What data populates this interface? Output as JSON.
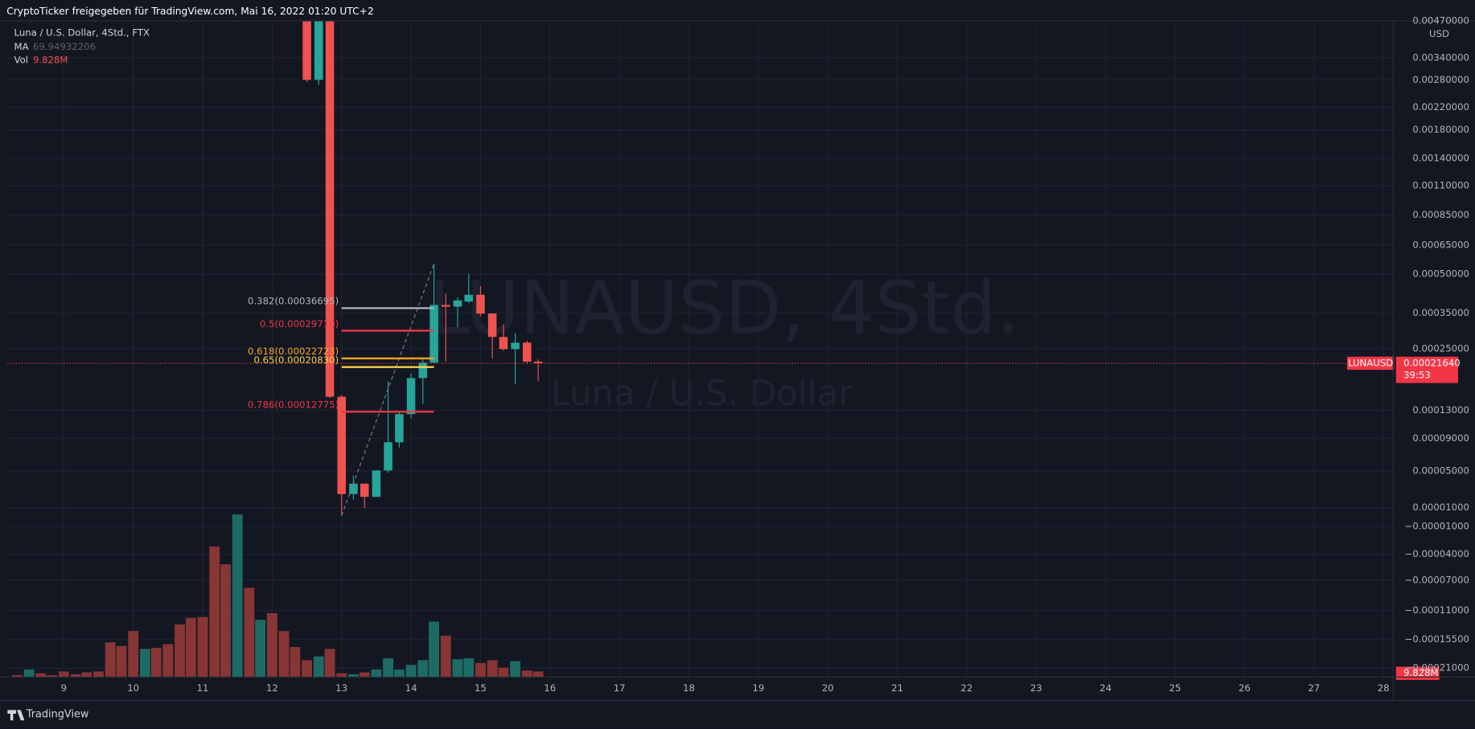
{
  "chart_data": {
    "type": "candlestick",
    "header": "CryptoTicker freigegeben für TradingView.com, Mai 16, 2022 01:20 UTC+2",
    "title": "Luna / U.S. Dollar, 4Std., FTX",
    "watermark": "LUNAUSD, 4Std.",
    "watermark_subtitle": "Luna / U.S. Dollar",
    "y_unit": "USD",
    "footer": "TradingView",
    "up_color": "#26a69a",
    "down_color": "#ef5350",
    "x": [
      12.5,
      12.67,
      12.83,
      13.0,
      13.17,
      13.33,
      13.5,
      13.67,
      13.83,
      14.0,
      14.17,
      14.33,
      14.5,
      14.67,
      14.83,
      15.0,
      15.17,
      15.33,
      15.5,
      15.67,
      15.83
    ],
    "open": [
      0.006,
      0.0028,
      0.006,
      0.000152,
      2.45e-05,
      3.58e-05,
      2.15e-05,
      5.06e-05,
      8.48e-05,
      0.000124,
      0.000186,
      0.000218,
      0.000378,
      0.000372,
      0.00039,
      0.000415,
      0.000349,
      0.00028,
      0.000249,
      0.000265,
      0.00022
    ],
    "high": [
      0.0062,
      0.0062,
      0.0062,
      0.000155,
      4.51e-05,
      3.58e-05,
      5.06e-05,
      0.00018,
      0.000128,
      0.000195,
      0.000225,
      0.00055,
      0.00042,
      0.000405,
      0.000502,
      0.000449,
      0.00035,
      0.000315,
      0.00029,
      0.00027,
      0.000225
    ],
    "low": [
      0.00275,
      0.00268,
      0.00015,
      1.6e-06,
      1.85e-05,
      9.5e-06,
      2.15e-05,
      4.8e-05,
      7.8e-05,
      0.000118,
      0.00014,
      0.000215,
      0.00022,
      0.000308,
      0.000385,
      0.00034,
      0.000227,
      0.000245,
      0.000175,
      0.000215,
      0.00018
    ],
    "close": [
      0.0028,
      0.006,
      0.000152,
      2.45e-05,
      3.58e-05,
      2.15e-05,
      5.06e-05,
      8.48e-05,
      0.000124,
      0.000186,
      0.000218,
      0.000378,
      0.000372,
      0.000394,
      0.000415,
      0.000349,
      0.00028,
      0.000249,
      0.000265,
      0.00022,
      0.0002164
    ],
    "ma": {
      "name": "MA",
      "value": 69.94932206
    },
    "volume": {
      "name": "Vol",
      "value_label": "9.828M",
      "x": [
        8.33,
        8.5,
        8.67,
        8.83,
        9.0,
        9.17,
        9.33,
        9.5,
        9.67,
        9.83,
        10.0,
        10.17,
        10.33,
        10.5,
        10.67,
        10.83,
        11.0,
        11.17,
        11.33,
        11.5,
        11.67,
        11.83,
        12.0,
        12.17,
        12.33,
        12.5,
        12.67,
        12.83,
        13.0,
        13.17,
        13.33,
        13.5,
        13.67,
        13.83,
        14.0,
        14.17,
        14.33,
        14.5,
        14.67,
        14.83,
        15.0,
        15.17,
        15.33,
        15.5,
        15.67,
        15.83
      ],
      "values": [
        3300000,
        13100000,
        6600000,
        3300000,
        9800000,
        4900000,
        8200000,
        9800000,
        60600000,
        54100000,
        80300000,
        49100000,
        50800000,
        57300000,
        91700000,
        103200000,
        104800000,
        227700000,
        196600000,
        283400000,
        155600000,
        99900000,
        111400000,
        80300000,
        52400000,
        29500000,
        36000000,
        49100000,
        6600000,
        4900000,
        8200000,
        13100000,
        32800000,
        13100000,
        21300000,
        29500000,
        96600000,
        72100000,
        31100000,
        32800000,
        24600000,
        29500000,
        16400000,
        27800000,
        11500000,
        9828000
      ],
      "colors": [
        "#873535",
        "#1e6b66",
        "#873535",
        "#873535",
        "#873535",
        "#873535",
        "#873535",
        "#873535",
        "#873535",
        "#873535",
        "#873535",
        "#1e6b66",
        "#873535",
        "#873535",
        "#873535",
        "#873535",
        "#873535",
        "#873535",
        "#873535",
        "#1e6b66",
        "#873535",
        "#1e6b66",
        "#873535",
        "#873535",
        "#873535",
        "#873535",
        "#1e6b66",
        "#873535",
        "#873535",
        "#1e6b66",
        "#873535",
        "#1e6b66",
        "#1e6b66",
        "#1e6b66",
        "#1e6b66",
        "#1e6b66",
        "#1e6b66",
        "#873535",
        "#1e6b66",
        "#1e6b66",
        "#873535",
        "#873535",
        "#873535",
        "#1e6b66",
        "#873535",
        "#873535"
      ]
    },
    "fib": [
      {
        "price": 0.00036695,
        "label": "0.382(0.00036695)",
        "color": "#b2b5be"
      },
      {
        "price": 0.0002971,
        "label": "0.5(0.00029710)",
        "color": "#f23645"
      },
      {
        "price": 0.00022723,
        "label": "0.618(0.00022723)",
        "color": "#f5a623"
      },
      {
        "price": 0.0002083,
        "label": "0.65(0.00020830)",
        "color": "#f7d148"
      },
      {
        "price": 0.00012775,
        "label": "0.786(0.00012775)",
        "color": "#f23645"
      }
    ],
    "last_price": {
      "value": 0.0002164,
      "label": "0.00021640",
      "symbol": "LUNAUSD",
      "countdown": "39:53",
      "color": "#f23645"
    },
    "xlim": [
      8.19,
      28.14
    ],
    "xticks": [
      9,
      10,
      11,
      12,
      13,
      14,
      15,
      16,
      17,
      18,
      19,
      20,
      21,
      22,
      23,
      24,
      25,
      26,
      27,
      28
    ],
    "ylim": [
      -0.00023,
      0.0047
    ],
    "yticks": [
      {
        "value": 0.0047,
        "label": "0.00470000"
      },
      {
        "value": 0.0034,
        "label": "0.00340000"
      },
      {
        "value": 0.0028,
        "label": "0.00280000"
      },
      {
        "value": 0.0022,
        "label": "0.00220000"
      },
      {
        "value": 0.0018,
        "label": "0.00180000"
      },
      {
        "value": 0.0014,
        "label": "0.00140000"
      },
      {
        "value": 0.0011,
        "label": "0.00110000"
      },
      {
        "value": 0.00085,
        "label": "0.00085000"
      },
      {
        "value": 0.00065,
        "label": "0.00065000"
      },
      {
        "value": 0.0005,
        "label": "0.00050000"
      },
      {
        "value": 0.00035,
        "label": "0.00035000"
      },
      {
        "value": 0.00025,
        "label": "0.00025000"
      },
      {
        "value": 0.00013,
        "label": "0.00013000"
      },
      {
        "value": 9e-05,
        "label": "0.00009000"
      },
      {
        "value": 5e-05,
        "label": "0.00005000"
      },
      {
        "value": 1e-05,
        "label": "0.00001000"
      },
      {
        "value": -1e-05,
        "label": "−0.00001000"
      },
      {
        "value": -4e-05,
        "label": "−0.00004000"
      },
      {
        "value": -7e-05,
        "label": "−0.00007000"
      },
      {
        "value": -0.00011,
        "label": "−0.00011000"
      },
      {
        "value": -0.000155,
        "label": "−0.00015500"
      },
      {
        "value": -0.00021,
        "label": "−0.00021000"
      }
    ],
    "grid": true
  }
}
